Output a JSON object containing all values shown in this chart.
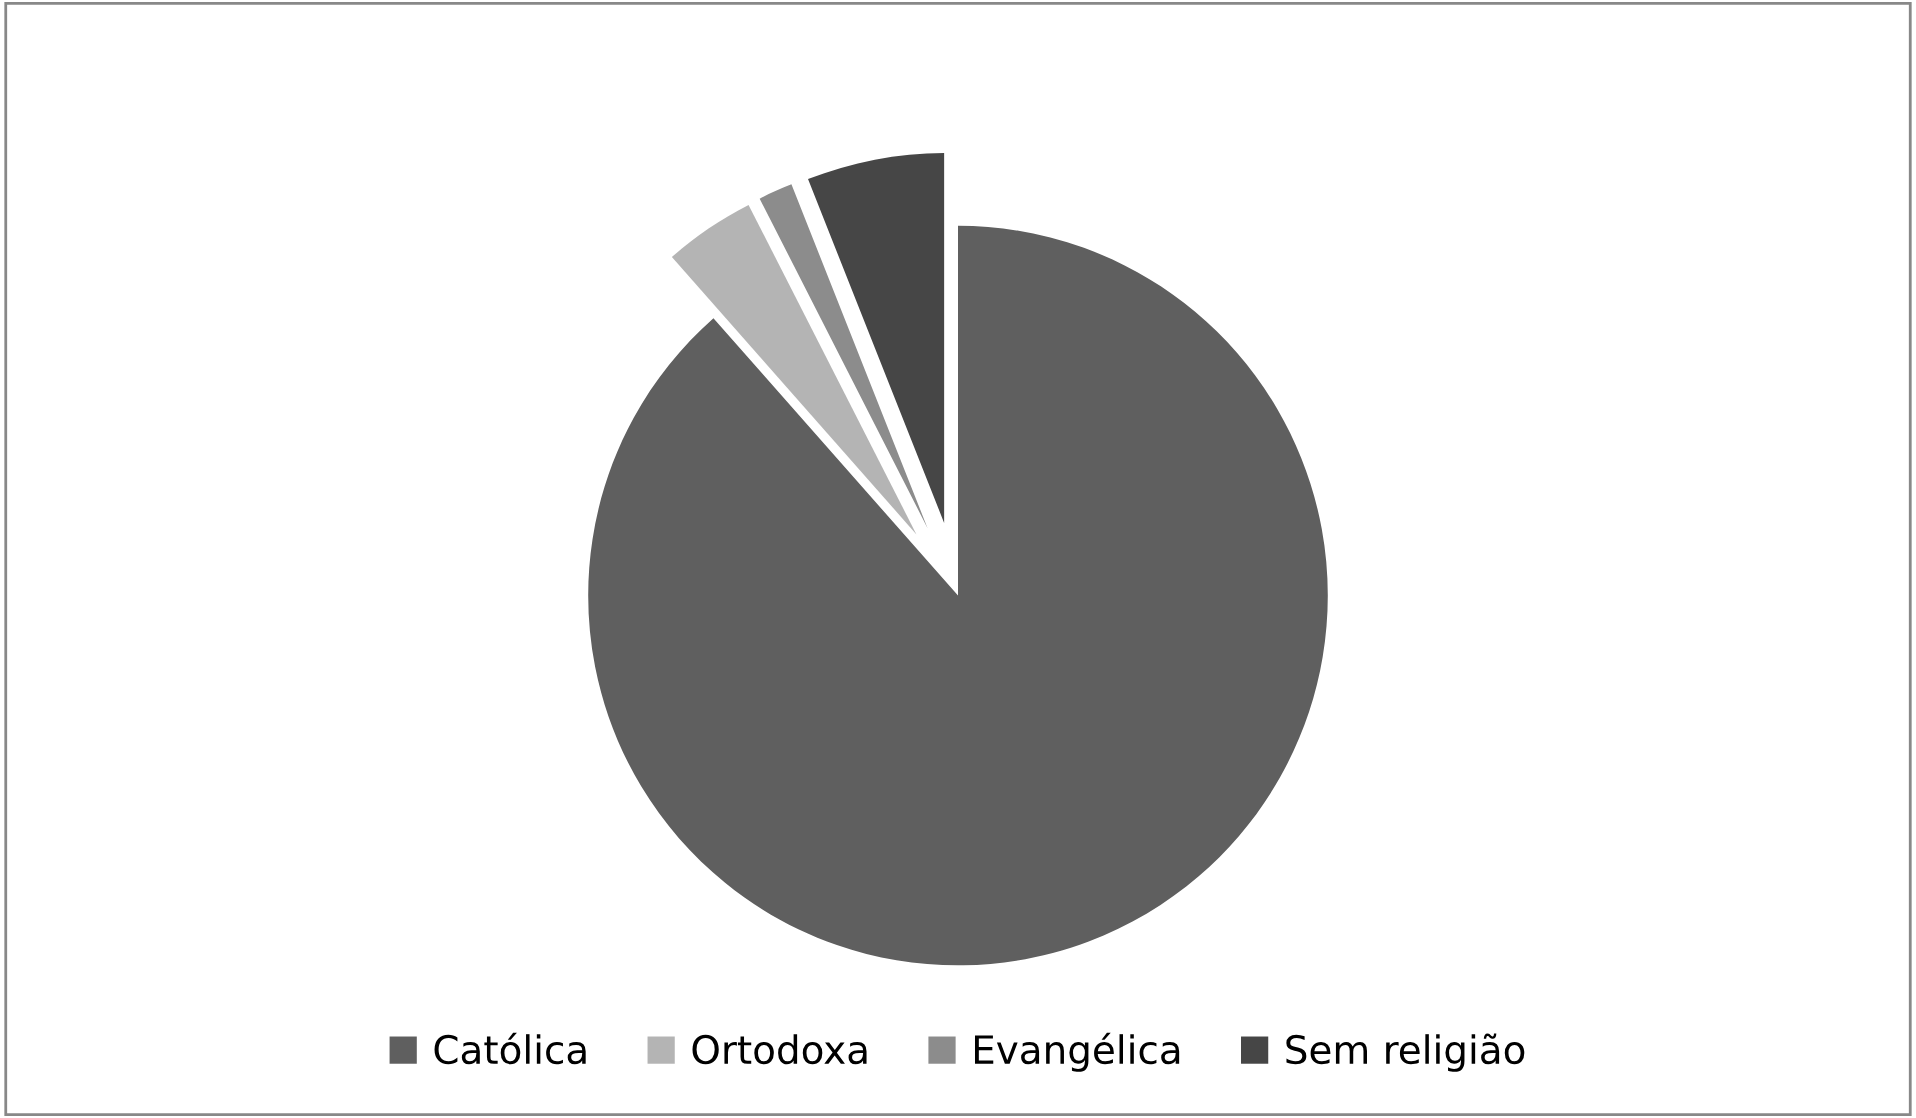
{
  "chart_data": {
    "type": "pie",
    "categories": [
      "Católica",
      "Ortodoxa",
      "Evangélica",
      "Sem religião"
    ],
    "values": [
      88.5,
      4,
      1.5,
      6
    ],
    "colors": [
      "#5f5f5f",
      "#b4b4b4",
      "#8c8c8c",
      "#464646"
    ],
    "legend": "bottom"
  }
}
